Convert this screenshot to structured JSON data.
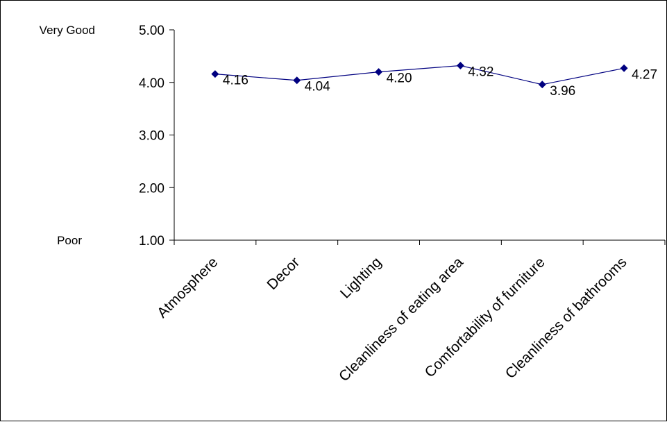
{
  "chart_data": {
    "type": "line",
    "title": "",
    "xlabel": "",
    "ylabel": "",
    "categories": [
      "Atmosphere",
      "Decor",
      "Lighting",
      "Cleanliness of eating area",
      "Comfortability of furniture",
      "Cleanliness of bathrooms"
    ],
    "series": [
      {
        "values": [
          4.16,
          4.04,
          4.2,
          4.32,
          3.96,
          4.27
        ]
      }
    ],
    "data_labels": [
      "4.16",
      "4.04",
      "4.20",
      "4.32",
      "3.96",
      "4.27"
    ],
    "ylim": [
      1,
      5
    ],
    "yticks": [
      "1.00",
      "2.00",
      "3.00",
      "4.00",
      "5.00"
    ],
    "scale_labels": {
      "top": "Very Good",
      "bottom": "Poor"
    },
    "grid": false,
    "legend": "none",
    "colors": {
      "series": "#000080",
      "axis": "#000000"
    }
  }
}
